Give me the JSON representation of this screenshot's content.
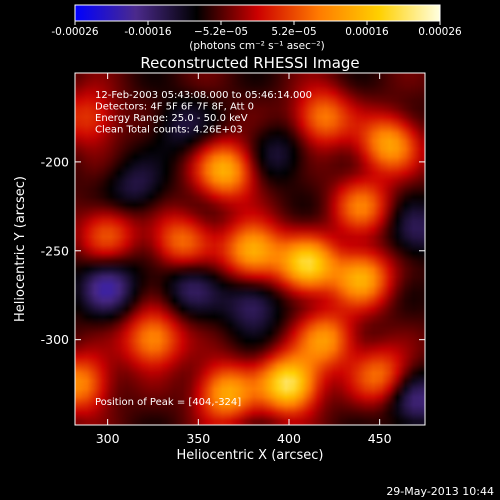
{
  "chart_data": {
    "type": "heatmap",
    "title": "Reconstructed RHESSI Image",
    "xlabel": "Heliocentric X (arcsec)",
    "ylabel": "Heliocentric Y (arcsec)",
    "xlim": [
      282,
      475
    ],
    "ylim": [
      -348,
      -150
    ],
    "x_ticks": [
      300,
      350,
      400,
      450
    ],
    "y_ticks": [
      -200,
      -250,
      -300
    ],
    "colorbar": {
      "min": -0.00026,
      "max": 0.00026,
      "ticks": [
        "-0.00026",
        "-0.00016",
        "−5.2e−05",
        "5.2e−05",
        "0.00016",
        "0.00026"
      ],
      "units": "(photons cm⁻² s⁻¹ asec⁻²)",
      "colors": [
        "#0000ff",
        "#4b2a8c",
        "#000000",
        "#cc0000",
        "#ff7a00",
        "#ffd000",
        "#ffffe0"
      ]
    },
    "annotations": [
      "12-Feb-2003 05:43:08.000 to 05:46:14.000",
      "Detectors: 4F 5F 6F 7F 8F, Att 0",
      "Energy Range: 25.0 - 50.0 keV",
      "Clean     Total counts: 4.26E+03",
      "Position of Peak = [404,-324]"
    ],
    "peak": {
      "x": 404,
      "y": -324
    },
    "sources": [
      {
        "x": 400,
        "y": -325,
        "value": 0.00026
      },
      {
        "x": 380,
        "y": -250,
        "value": 0.0002
      },
      {
        "x": 410,
        "y": -258,
        "value": 0.00022
      },
      {
        "x": 440,
        "y": -265,
        "value": 0.00018
      },
      {
        "x": 455,
        "y": -190,
        "value": 0.00017
      },
      {
        "x": 418,
        "y": -175,
        "value": 0.00014
      },
      {
        "x": 365,
        "y": -205,
        "value": 0.00018
      },
      {
        "x": 340,
        "y": -245,
        "value": 0.00012
      },
      {
        "x": 300,
        "y": -240,
        "value": 0.0001
      },
      {
        "x": 290,
        "y": -175,
        "value": 9e-05
      },
      {
        "x": 325,
        "y": -300,
        "value": 0.00016
      },
      {
        "x": 365,
        "y": -330,
        "value": 0.00018
      },
      {
        "x": 420,
        "y": -300,
        "value": 0.00015
      },
      {
        "x": 450,
        "y": -320,
        "value": 0.00012
      },
      {
        "x": 285,
        "y": -325,
        "value": 0.00015
      },
      {
        "x": 440,
        "y": -225,
        "value": 0.00012
      },
      {
        "x": 340,
        "y": -180,
        "value": -8e-05
      },
      {
        "x": 380,
        "y": -280,
        "value": -0.00012
      },
      {
        "x": 345,
        "y": -270,
        "value": -0.0001
      },
      {
        "x": 300,
        "y": -270,
        "value": -0.00014
      },
      {
        "x": 470,
        "y": -240,
        "value": -0.0001
      },
      {
        "x": 470,
        "y": -335,
        "value": -0.00012
      },
      {
        "x": 315,
        "y": -215,
        "value": -9e-05
      },
      {
        "x": 395,
        "y": -195,
        "value": -8e-05
      }
    ]
  },
  "footer": {
    "timestamp": "29-May-2013 10:44"
  }
}
